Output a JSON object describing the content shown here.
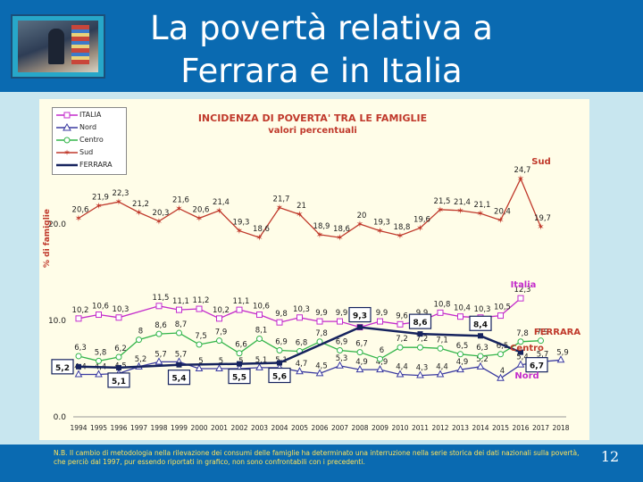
{
  "slide": {
    "title": "La povertà relativa a Ferrara e in Italia",
    "page_number": "12",
    "note": "N.B. Il cambio di metodologia nella rilevazione dei consumi delle famiglie ha determinato una interruzione nella serie storica dei dati nazionali sulla povertà, che perciò dal 1997, pur essendo riportati in grafico, non sono confrontabili con i precedenti."
  },
  "chart_data": {
    "type": "line",
    "title": "INCIDENZA DI POVERTA' TRA LE FAMIGLIE",
    "subtitle": "valori percentuali",
    "ylabel": "% di famiglie",
    "xlabel": "",
    "ylim": [
      0,
      25
    ],
    "yticks": [
      "0.0",
      "10.0",
      "20.0"
    ],
    "categories": [
      "1994",
      "1995",
      "1996",
      "1997",
      "1998",
      "1999",
      "2000",
      "2001",
      "2002",
      "2003",
      "2004",
      "2005",
      "2006",
      "2007",
      "2008",
      "2009",
      "2010",
      "2011",
      "2012",
      "2013",
      "2014",
      "2015",
      "2016",
      "2017",
      "2018"
    ],
    "series": [
      {
        "name": "ITALIA",
        "color": "#c42ccc",
        "marker": "square",
        "values": [
          10.2,
          10.6,
          10.3,
          null,
          11.5,
          11.1,
          11.2,
          10.2,
          11.1,
          10.6,
          9.8,
          10.3,
          9.9,
          9.9,
          9.3,
          9.9,
          9.6,
          9.9,
          10.8,
          10.4,
          10.3,
          10.5,
          12.3,
          null,
          null
        ]
      },
      {
        "name": "Nord",
        "color": "#3a3aa0",
        "marker": "triangle",
        "values": [
          4.4,
          4.4,
          4.5,
          5.2,
          5.7,
          5.7,
          5.0,
          5.0,
          5.0,
          5.1,
          5.1,
          4.7,
          4.5,
          5.3,
          4.9,
          4.9,
          4.4,
          4.3,
          4.4,
          4.9,
          5.2,
          4.0,
          5.4,
          5.7,
          5.9
        ]
      },
      {
        "name": "Centro",
        "color": "#33b54a",
        "marker": "circle",
        "values": [
          6.3,
          5.8,
          6.2,
          8.0,
          8.6,
          8.7,
          7.5,
          7.9,
          6.6,
          8.1,
          6.9,
          6.8,
          7.8,
          6.9,
          6.7,
          6.0,
          7.2,
          7.2,
          7.1,
          6.5,
          6.3,
          6.5,
          7.8,
          7.9,
          null
        ]
      },
      {
        "name": "Sud",
        "color": "#c0392b",
        "marker": "star",
        "values": [
          20.6,
          21.9,
          22.3,
          21.2,
          20.3,
          21.6,
          20.6,
          21.4,
          19.3,
          18.6,
          21.7,
          21.0,
          18.9,
          18.6,
          20.0,
          19.3,
          18.8,
          19.6,
          21.5,
          21.4,
          21.1,
          20.4,
          24.7,
          19.7,
          null
        ]
      },
      {
        "name": "FERRARA",
        "color": "#16235e",
        "marker": "none",
        "values": [
          5.2,
          null,
          5.1,
          null,
          null,
          5.4,
          null,
          null,
          5.5,
          null,
          5.6,
          null,
          null,
          null,
          9.3,
          null,
          null,
          8.6,
          null,
          null,
          8.4,
          null,
          6.7,
          null,
          null
        ]
      }
    ],
    "ferrara_labels": [
      "5,2",
      "5,1",
      "5,4",
      "5,5",
      "5,6",
      "9,3",
      "8,6",
      "8,4",
      "6,7"
    ],
    "region_labels": {
      "sud": "Sud",
      "italia": "Italia",
      "ferrara": "FERRARA",
      "centro": "Centro",
      "nord": "Nord"
    },
    "legend": [
      "ITALIA",
      "Nord",
      "Centro",
      "Sud",
      "FERRARA"
    ]
  }
}
